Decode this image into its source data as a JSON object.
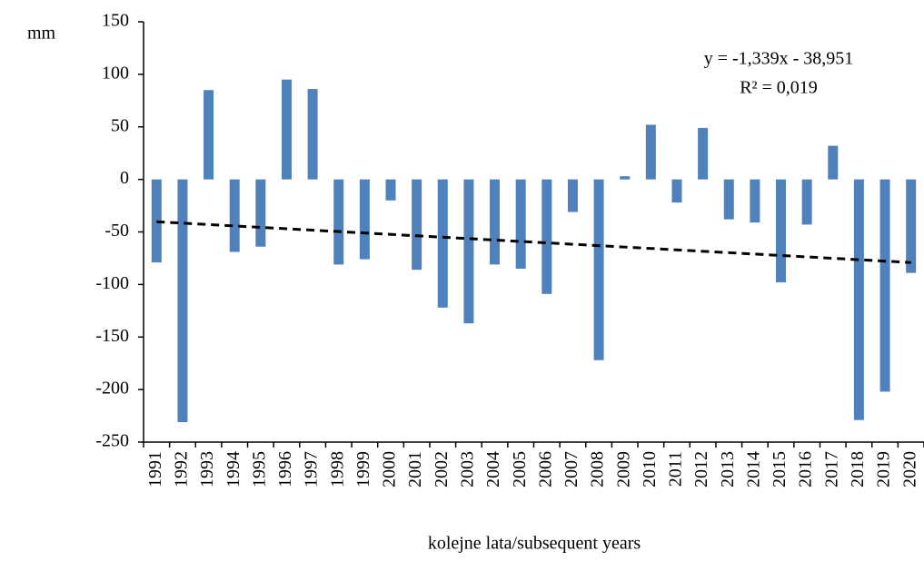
{
  "chart_data": {
    "type": "bar",
    "y_label": "mm",
    "x_label": "kolejne lata/subsequent years",
    "categories": [
      "1991",
      "1992",
      "1993",
      "1994",
      "1995",
      "1996",
      "1997",
      "1998",
      "1999",
      "2000",
      "2001",
      "2002",
      "2003",
      "2004",
      "2005",
      "2006",
      "2007",
      "2008",
      "2009",
      "2010",
      "2011",
      "2012",
      "2013",
      "2014",
      "2015",
      "2016",
      "2017",
      "2018",
      "2019",
      "2020"
    ],
    "values": [
      -79,
      -231,
      85,
      -69,
      -64,
      95,
      86,
      -81,
      -76,
      -20,
      -86,
      -122,
      -137,
      -81,
      -85,
      -109,
      -31,
      -172,
      3,
      52,
      -22,
      49,
      -38,
      -41,
      -98,
      -43,
      32,
      -229,
      -202,
      -89
    ],
    "color": "#4f81bd",
    "ylim": [
      -250,
      150
    ],
    "yticks": [
      -250,
      -200,
      -150,
      -100,
      -50,
      0,
      50,
      100,
      150
    ],
    "trendline": {
      "slope": -1.339,
      "intercept": -38.951,
      "color": "#000000",
      "equation": "y = -1,339x - 38,951",
      "r_squared": "R² = 0,019"
    }
  }
}
